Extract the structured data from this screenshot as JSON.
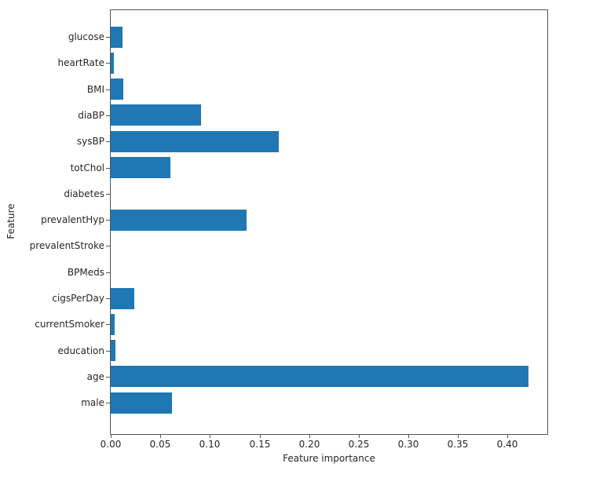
{
  "figure": {
    "background": "#ffffff"
  },
  "colors": {
    "bar": "#1f77b4",
    "spine": "#555555",
    "text": "#262626"
  },
  "chart_data": {
    "type": "bar",
    "orientation": "horizontal",
    "title": "",
    "xlabel": "Feature importance",
    "ylabel": "Feature",
    "categories_top_to_bottom": [
      "glucose",
      "heartRate",
      "BMI",
      "diaBP",
      "sysBP",
      "totChol",
      "diabetes",
      "prevalentHyp",
      "prevalentStroke",
      "BPMeds",
      "cigsPerDay",
      "currentSmoker",
      "education",
      "age",
      "male"
    ],
    "values_top_to_bottom": [
      0.012,
      0.003,
      0.013,
      0.091,
      0.169,
      0.06,
      0.0,
      0.137,
      0.0,
      0.0,
      0.024,
      0.004,
      0.005,
      0.421,
      0.062
    ],
    "xlim": [
      0,
      0.44
    ],
    "xticks": [
      0.0,
      0.05,
      0.1,
      0.15,
      0.2,
      0.25,
      0.3,
      0.35,
      0.4
    ],
    "xtick_labels": [
      "0.00",
      "0.05",
      "0.10",
      "0.15",
      "0.20",
      "0.25",
      "0.30",
      "0.35",
      "0.40"
    ],
    "bar_color": "#1f77b4",
    "grid": false,
    "legend": null
  }
}
